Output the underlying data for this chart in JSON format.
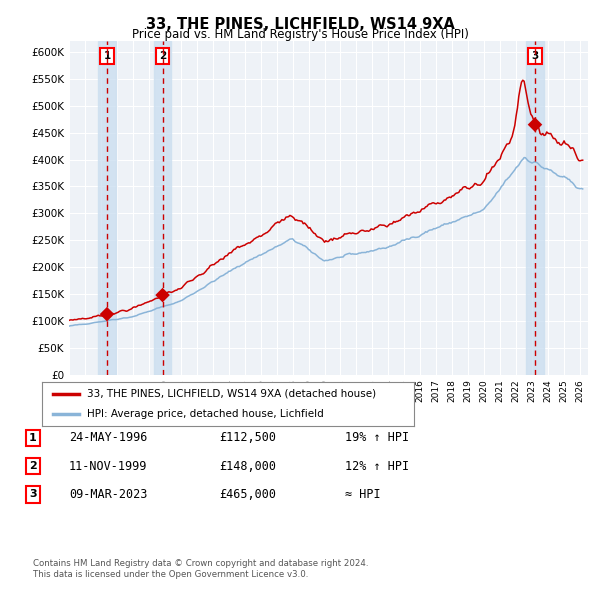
{
  "title": "33, THE PINES, LICHFIELD, WS14 9XA",
  "subtitle": "Price paid vs. HM Land Registry's House Price Index (HPI)",
  "legend_line1": "33, THE PINES, LICHFIELD, WS14 9XA (detached house)",
  "legend_line2": "HPI: Average price, detached house, Lichfield",
  "sale_points": [
    {
      "label": "1",
      "date": "24-MAY-1996",
      "price": 112500,
      "price_str": "£112,500",
      "note": "19% ↑ HPI",
      "year": 1996.38
    },
    {
      "label": "2",
      "date": "11-NOV-1999",
      "price": 148000,
      "price_str": "£148,000",
      "note": "12% ↑ HPI",
      "year": 1999.86
    },
    {
      "label": "3",
      "date": "09-MAR-2023",
      "price": 465000,
      "price_str": "£465,000",
      "note": "≈ HPI",
      "year": 2023.18
    }
  ],
  "footer_line1": "Contains HM Land Registry data © Crown copyright and database right 2024.",
  "footer_line2": "This data is licensed under the Open Government Licence v3.0.",
  "xlim_start": 1994.0,
  "xlim_end": 2026.5,
  "ylim_min": 0,
  "ylim_max": 620000,
  "yticks": [
    0,
    50000,
    100000,
    150000,
    200000,
    250000,
    300000,
    350000,
    400000,
    450000,
    500000,
    550000,
    600000
  ],
  "background_color": "#ffffff",
  "plot_bg_color": "#eef2f7",
  "grid_color": "#ffffff",
  "hpi_color": "#8ab4d8",
  "red_line_color": "#cc0000",
  "sale_point_color": "#cc0000",
  "dashed_line_color": "#cc0000",
  "shade_color": "#ccdff0",
  "label_box_color": "#ffffff",
  "label_box_edge": "#cc0000"
}
